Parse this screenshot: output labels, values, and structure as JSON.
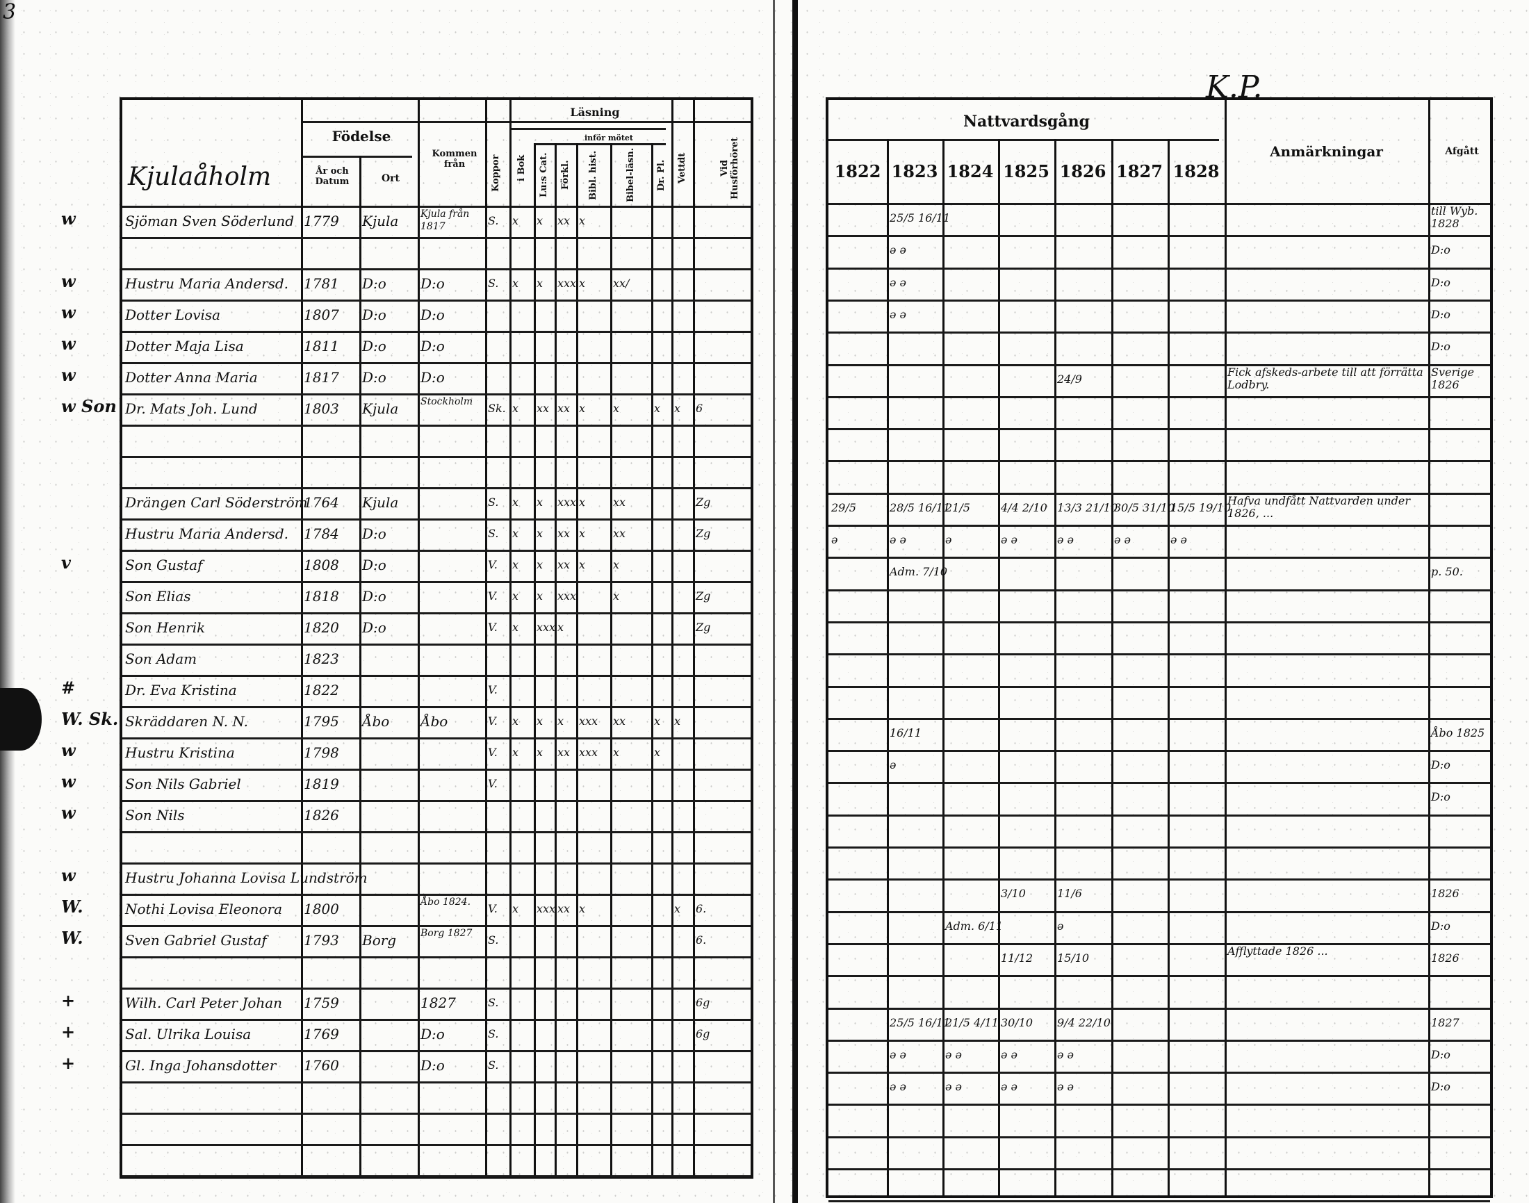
{
  "page_marks": {
    "page_number": "3",
    "top_right": "K.P."
  },
  "left": {
    "header": {
      "place": "Kjulaåholm",
      "fodelse": "Födelse",
      "ar_datum": "År och Datum",
      "ort": "Ort",
      "kommen": "Kommen från",
      "koppor": "Koppor",
      "lasning": "Läsning",
      "infor_motet": "inför mötet",
      "cols": [
        "i Bok",
        "Lu:s Cat.",
        "Förkl.",
        "Bibl. hist.",
        "Bibel-läsn.",
        "Dr. Pl.",
        "Vettdt",
        "Vid Husförhöret"
      ]
    },
    "rows": [
      {
        "m": "w",
        "c": [
          "Sjöman Sven Söderlund",
          "1779",
          "Kjula",
          "Kjula från 1817",
          "S.",
          "x",
          "x",
          "xx",
          "x",
          "",
          "",
          "",
          ""
        ]
      },
      {
        "m": "",
        "c": []
      },
      {
        "m": "w",
        "c": [
          "Hustru Maria Andersd.",
          "1781",
          "D:o",
          "D:o",
          "S.",
          "x",
          "x",
          "xxx",
          "x",
          "xx/",
          "",
          "",
          ""
        ]
      },
      {
        "m": "w",
        "c": [
          "Dotter Lovisa",
          "1807",
          "D:o",
          "D:o",
          "",
          "",
          "",
          "",
          "",
          "",
          "",
          "",
          ""
        ]
      },
      {
        "m": "w",
        "c": [
          "Dotter Maja Lisa",
          "1811",
          "D:o",
          "D:o",
          "",
          "",
          "",
          "",
          "",
          "",
          "",
          "",
          ""
        ]
      },
      {
        "m": "w",
        "c": [
          "Dotter Anna Maria",
          "1817",
          "D:o",
          "D:o",
          "",
          "",
          "",
          "",
          "",
          "",
          "",
          "",
          ""
        ]
      },
      {
        "m": "w Son",
        "c": [
          "Dr. Mats Joh. Lund",
          "1803",
          "Kjula",
          "Stockholm",
          "Sk.",
          "x",
          "xx",
          "xx",
          "x",
          "x",
          "x",
          "x",
          "6"
        ]
      },
      {
        "m": "",
        "c": []
      },
      {
        "m": "",
        "c": []
      },
      {
        "m": "",
        "c": [
          "Drängen Carl Söderström",
          "1764",
          "Kjula",
          "",
          "S.",
          "x",
          "x",
          "xxx",
          "x",
          "xx",
          "",
          "",
          "Zg"
        ]
      },
      {
        "m": "",
        "c": [
          "Hustru Maria Andersd.",
          "1784",
          "D:o",
          "",
          "S.",
          "x",
          "x",
          "xx",
          "x",
          "xx",
          "",
          "",
          "Zg"
        ]
      },
      {
        "m": "v",
        "c": [
          "Son Gustaf",
          "1808",
          "D:o",
          "",
          "V.",
          "x",
          "x",
          "xx",
          "x",
          "x",
          "",
          "",
          ""
        ]
      },
      {
        "m": "",
        "c": [
          "Son Elias",
          "1818",
          "D:o",
          "",
          "V.",
          "x",
          "x",
          "xxx",
          "",
          "x",
          "",
          "",
          "Zg"
        ]
      },
      {
        "m": "",
        "c": [
          "Son Henrik",
          "1820",
          "D:o",
          "",
          "V.",
          "x",
          "xxx",
          "x",
          "",
          "",
          "",
          "",
          "Zg"
        ]
      },
      {
        "m": "",
        "c": [
          "Son Adam",
          "1823",
          "",
          "",
          "",
          "",
          "",
          "",
          "",
          "",
          "",
          "",
          ""
        ]
      },
      {
        "m": "#",
        "c": [
          "Dr. Eva Kristina",
          "1822",
          "",
          "",
          "V.",
          "",
          "",
          "",
          "",
          "",
          "",
          "",
          ""
        ]
      },
      {
        "m": "W. Sk.",
        "c": [
          "Skräddaren N. N.",
          "1795",
          "Åbo",
          "Åbo",
          "V.",
          "x",
          "x",
          "x",
          "xxx",
          "xx",
          "x",
          "x",
          ""
        ]
      },
      {
        "m": "w",
        "c": [
          "Hustru Kristina",
          "1798",
          "",
          "",
          "V.",
          "x",
          "x",
          "xx",
          "xxx",
          "x",
          "x",
          "",
          ""
        ]
      },
      {
        "m": "w",
        "c": [
          "Son Nils Gabriel",
          "1819",
          "",
          "",
          "V.",
          "",
          "",
          "",
          "",
          "",
          "",
          "",
          ""
        ]
      },
      {
        "m": "w",
        "c": [
          "Son Nils",
          "1826",
          "",
          "",
          "",
          "",
          "",
          "",
          "",
          "",
          "",
          "",
          ""
        ]
      },
      {
        "m": "",
        "c": []
      },
      {
        "m": "w",
        "c": [
          "Hustru Johanna Lovisa Lundström",
          "",
          "",
          "",
          "",
          "",
          "",
          "",
          "",
          "",
          "",
          "",
          ""
        ]
      },
      {
        "m": "W.",
        "c": [
          "Nothi Lovisa Eleonora",
          "1800",
          "",
          "Åbo 1824.",
          "V.",
          "x",
          "xxx",
          "xx",
          "x",
          "",
          "",
          "x",
          "6."
        ]
      },
      {
        "m": "W.",
        "c": [
          "Sven Gabriel Gustaf",
          "1793",
          "Borg",
          "Borg 1827",
          "S.",
          "",
          "",
          "",
          "",
          "",
          "",
          "",
          "6."
        ]
      },
      {
        "m": "",
        "c": []
      },
      {
        "m": "+",
        "c": [
          "Wilh. Carl Peter Johan",
          "1759",
          "",
          "1827",
          "S.",
          "",
          "",
          "",
          "",
          "",
          "",
          "",
          "6g"
        ]
      },
      {
        "m": "+",
        "c": [
          "Sal. Ulrika Louisa",
          "1769",
          "",
          "D:o",
          "S.",
          "",
          "",
          "",
          "",
          "",
          "",
          "",
          "6g"
        ]
      },
      {
        "m": "+",
        "c": [
          "Gl. Inga Johansdotter",
          "1760",
          "",
          "D:o",
          "S.",
          "",
          "",
          "",
          "",
          "",
          "",
          "",
          ""
        ]
      },
      {
        "m": "",
        "c": []
      },
      {
        "m": "",
        "c": []
      },
      {
        "m": "",
        "c": []
      }
    ]
  },
  "right": {
    "header": {
      "nattvard": "Nattvardsgång",
      "years": [
        "1822",
        "1823",
        "1824",
        "1825",
        "1826",
        "1827",
        "1828"
      ],
      "anm": "Anmärkningar",
      "afgatt": "Afgått"
    },
    "rows": [
      {
        "c": [
          "",
          "25/5 16/11",
          "",
          "",
          "",
          "",
          "",
          "",
          "till Wyb. 1828"
        ]
      },
      {
        "c": [
          "",
          "ǝ ǝ",
          "",
          "",
          "",
          "",
          "",
          "",
          "D:o"
        ]
      },
      {
        "c": [
          "",
          "ǝ ǝ",
          "",
          "",
          "",
          "",
          "",
          "",
          "D:o"
        ]
      },
      {
        "c": [
          "",
          "ǝ ǝ",
          "",
          "",
          "",
          "",
          "",
          "",
          "D:o"
        ]
      },
      {
        "c": [
          "",
          "",
          "",
          "",
          "",
          "",
          "",
          "",
          "D:o"
        ]
      },
      {
        "c": [
          "",
          "",
          "",
          "",
          "24/9",
          "",
          "",
          "Fick afskeds-arbete till att förrätta Lodbry.",
          "Sverige 1826"
        ]
      },
      {
        "c": []
      },
      {
        "c": []
      },
      {
        "c": []
      },
      {
        "c": [
          "29/5",
          "28/5 16/11",
          "21/5",
          "4/4 2/10",
          "13/3 21/10",
          "30/5 31/10",
          "15/5 19/10",
          "Hafva undfått Nattvarden under 1826, ...",
          ""
        ]
      },
      {
        "c": [
          "ǝ",
          "ǝ ǝ",
          "ǝ",
          "ǝ ǝ",
          "ǝ ǝ",
          "ǝ ǝ",
          "ǝ ǝ",
          "",
          ""
        ]
      },
      {
        "c": [
          "",
          "Adm. 7/10",
          "",
          "",
          "",
          "",
          "",
          "",
          "p. 50."
        ]
      },
      {
        "c": []
      },
      {
        "c": []
      },
      {
        "c": []
      },
      {
        "c": []
      },
      {
        "c": [
          "",
          "16/11",
          "",
          "",
          "",
          "",
          "",
          "",
          "Åbo 1825"
        ]
      },
      {
        "c": [
          "",
          "ǝ",
          "",
          "",
          "",
          "",
          "",
          "",
          "D:o"
        ]
      },
      {
        "c": [
          "",
          "",
          "",
          "",
          "",
          "",
          "",
          "",
          "D:o"
        ]
      },
      {
        "c": []
      },
      {
        "c": []
      },
      {
        "c": [
          "",
          "",
          "",
          "3/10",
          "11/6",
          "",
          "",
          "",
          "1826"
        ]
      },
      {
        "c": [
          "",
          "",
          "Adm. 6/11",
          "",
          "ǝ",
          "",
          "",
          "",
          "D:o"
        ]
      },
      {
        "c": [
          "",
          "",
          "",
          "11/12",
          "15/10",
          "",
          "",
          "Afflyttade 1826 ... ",
          "1826"
        ]
      },
      {
        "c": []
      },
      {
        "c": [
          "",
          "25/5 16/11",
          "21/5 4/11",
          "30/10",
          "9/4 22/10",
          "",
          "",
          "",
          "1827"
        ]
      },
      {
        "c": [
          "",
          "ǝ ǝ",
          "ǝ ǝ",
          "ǝ ǝ",
          "ǝ ǝ",
          "",
          "",
          "",
          "D:o"
        ]
      },
      {
        "c": [
          "",
          "ǝ ǝ",
          "ǝ ǝ",
          "ǝ ǝ",
          "ǝ ǝ",
          "",
          "",
          "",
          "D:o"
        ]
      },
      {
        "c": []
      },
      {
        "c": []
      },
      {
        "c": []
      }
    ]
  }
}
